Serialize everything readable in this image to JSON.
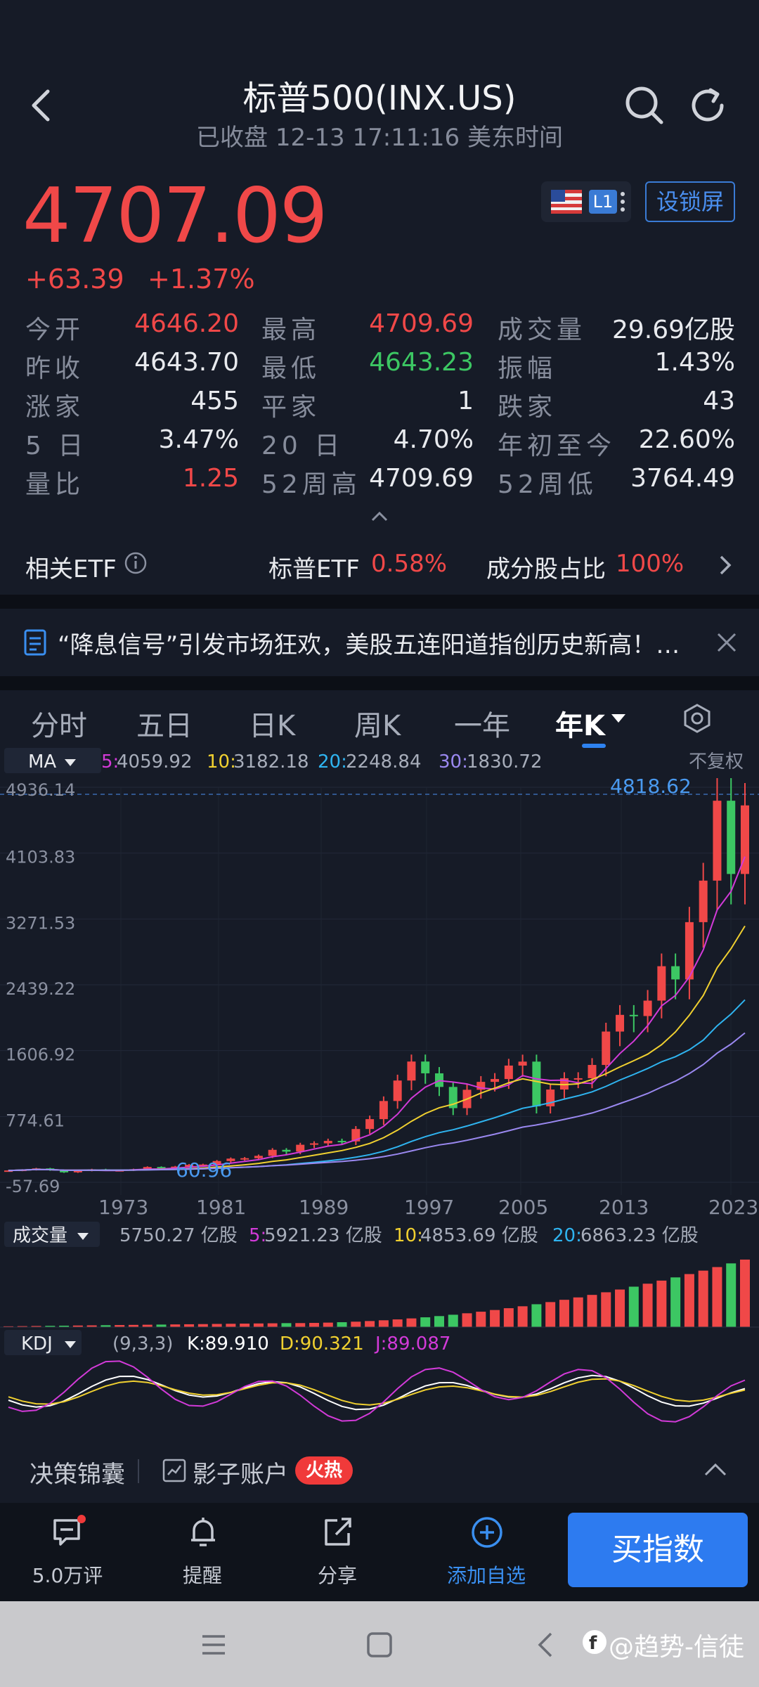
{
  "header": {
    "title": "标普500(INX.US)",
    "subtitle": "已收盘 12-13 17:11:16 美东时间",
    "lock_label": "设锁屏",
    "level_badge": "L1"
  },
  "quote": {
    "price": "4707.09",
    "change": "+63.39",
    "change_pct": "+1.37%"
  },
  "stats": [
    {
      "label": "今开",
      "value": "4646.20",
      "color": "red"
    },
    {
      "label": "最高",
      "value": "4709.69",
      "color": "red"
    },
    {
      "label": "成交量",
      "value": "29.69亿股",
      "color": "white"
    },
    {
      "label": "昨收",
      "value": "4643.70",
      "color": "white"
    },
    {
      "label": "最低",
      "value": "4643.23",
      "color": "green"
    },
    {
      "label": "振幅",
      "value": "1.43%",
      "color": "white"
    },
    {
      "label": "涨家",
      "value": "455",
      "color": "white"
    },
    {
      "label": "平家",
      "value": "1",
      "color": "white"
    },
    {
      "label": "跌家",
      "value": "43",
      "color": "white"
    },
    {
      "label": "5 日",
      "value": "3.47%",
      "color": "white"
    },
    {
      "label": "20 日",
      "value": "4.70%",
      "color": "white"
    },
    {
      "label": "年初至今",
      "value": "22.60%",
      "color": "white"
    },
    {
      "label": "量比",
      "value": "1.25",
      "color": "red"
    },
    {
      "label": "52周高",
      "value": "4709.69",
      "color": "white"
    },
    {
      "label": "52周低",
      "value": "3764.49",
      "color": "white"
    }
  ],
  "etf": {
    "label": "相关ETF",
    "etf_name": "标普ETF",
    "etf_pct": "0.58%",
    "component_label": "成分股占比",
    "component_pct": "100%"
  },
  "news": {
    "text": "“降息信号”引发市场狂欢，美股五连阳道指创历史新高！…"
  },
  "tabs": [
    "分时",
    "五日",
    "日K",
    "周K",
    "一年",
    "年K"
  ],
  "chart": {
    "ma_label": "MA",
    "ma5": "4059.92",
    "ma10": "3182.18",
    "ma20": "2248.84",
    "ma30": "1830.72",
    "ma5_key": "5:",
    "ma10_key": "10:",
    "ma20_key": "20:",
    "ma30_key": "30:",
    "adjust": "不复权",
    "high_marker": "4818.62",
    "low_marker": "60.96",
    "y_ticks": [
      "4936.14",
      "4103.83",
      "3271.53",
      "2439.22",
      "1606.92",
      "774.61",
      "-57.69"
    ],
    "x_ticks": [
      "1973",
      "1981",
      "1989",
      "1997",
      "2005",
      "2013",
      "2023"
    ],
    "vol_label": "成交量",
    "vol_value": "5750.27 亿股",
    "vol5": "5921.23 亿股",
    "vol10": "4853.69 亿股",
    "vol20": "6863.23 亿股",
    "vol5_key": "5:",
    "vol10_key": "10:",
    "vol20_key": "20:",
    "kdj_label": "KDJ",
    "kdj_params": "(9,3,3)",
    "kdj_k": "K:89.910",
    "kdj_d": "D:90.321",
    "kdj_j": "J:89.087"
  },
  "features": {
    "item1": "决策锦囊",
    "item2": "影子账户",
    "hot_badge": "火热"
  },
  "bottom": {
    "comments": "5.0万评",
    "alert": "提醒",
    "share": "分享",
    "add_watch": "添加自选",
    "buy": "买指数"
  },
  "watermark": "@趋势-信徒",
  "colors": {
    "up": "#f04848",
    "down": "#3cc763",
    "accent": "#2d7bf0"
  }
}
